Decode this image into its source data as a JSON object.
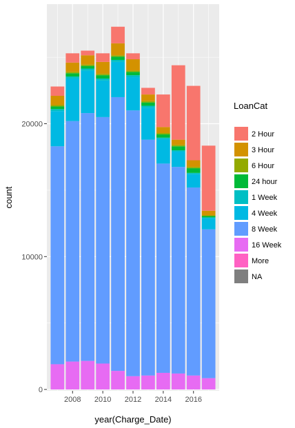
{
  "chart_data": {
    "type": "bar",
    "stacked": true,
    "title": "",
    "xlabel": "year(Charge_Date)",
    "ylabel": "count",
    "x": [
      2007,
      2008,
      2009,
      2010,
      2011,
      2012,
      2013,
      2014,
      2015,
      2016,
      2017
    ],
    "x_ticks": [
      "2008",
      "2010",
      "2012",
      "2014",
      "2016"
    ],
    "y_ticks": [
      "0",
      "10000",
      "20000"
    ],
    "xlim": [
      2006.3,
      2017.7
    ],
    "ylim": [
      -100,
      29000
    ],
    "grid": true,
    "legend": {
      "title": "LoanCat",
      "position": "right"
    },
    "series": [
      {
        "name": "16 Week",
        "color": "#E76BF3",
        "values": [
          1900,
          2100,
          2150,
          1950,
          1400,
          1000,
          1050,
          1250,
          1200,
          1050,
          850
        ]
      },
      {
        "name": "8 Week",
        "color": "#619CFF",
        "values": [
          16400,
          18100,
          18650,
          18550,
          20600,
          20000,
          17750,
          15750,
          15550,
          14150,
          11200
        ]
      },
      {
        "name": "4 Week",
        "color": "#00B9E3",
        "values": [
          2650,
          3200,
          3200,
          2750,
          2650,
          2500,
          2400,
          1850,
          1150,
          1000,
          850
        ]
      },
      {
        "name": "1 Week",
        "color": "#00BFC4",
        "values": [
          150,
          150,
          150,
          150,
          150,
          150,
          150,
          100,
          100,
          100,
          50
        ]
      },
      {
        "name": "24 hour",
        "color": "#00BA38",
        "values": [
          200,
          250,
          200,
          250,
          250,
          250,
          250,
          250,
          300,
          350,
          100
        ]
      },
      {
        "name": "6 Hour",
        "color": "#93AA00",
        "values": [
          100,
          100,
          100,
          100,
          100,
          100,
          100,
          100,
          100,
          100,
          50
        ]
      },
      {
        "name": "3 Hour",
        "color": "#D39200",
        "values": [
          700,
          700,
          700,
          900,
          900,
          850,
          500,
          450,
          400,
          500,
          350
        ]
      },
      {
        "name": "2 Hour",
        "color": "#F8766D",
        "values": [
          700,
          700,
          350,
          650,
          1250,
          450,
          500,
          2450,
          5600,
          5600,
          4900
        ]
      },
      {
        "name": "More",
        "color": "#FF61C3",
        "values": [
          0,
          0,
          0,
          0,
          0,
          0,
          0,
          0,
          0,
          0,
          0
        ]
      },
      {
        "name": "NA",
        "color": "#7F7F7F",
        "values": [
          0,
          0,
          0,
          0,
          0,
          0,
          0,
          0,
          0,
          0,
          0
        ]
      }
    ],
    "legend_order": [
      "2 Hour",
      "3 Hour",
      "6 Hour",
      "24 hour",
      "1 Week",
      "4 Week",
      "8 Week",
      "16 Week",
      "More",
      "NA"
    ]
  }
}
